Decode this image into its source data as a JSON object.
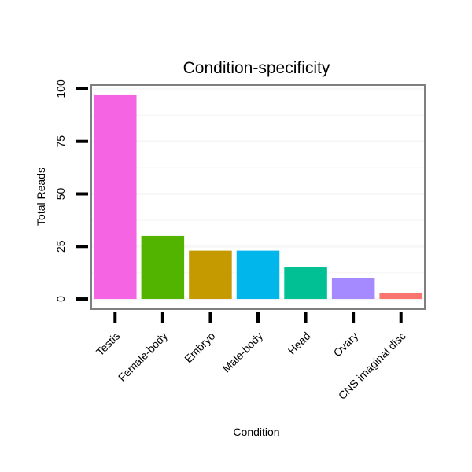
{
  "chart_data": {
    "type": "bar",
    "title": "Condition-specificity",
    "xlabel": "Condition",
    "ylabel": "Total Reads",
    "categories": [
      "Testis",
      "Female-body",
      "Embryo",
      "Male-body",
      "Head",
      "Ovary",
      "CNS imaginal disc"
    ],
    "values": [
      97,
      30,
      23,
      23,
      15,
      10,
      3
    ],
    "colors": [
      "#f564e3",
      "#53b400",
      "#c49a00",
      "#00b6eb",
      "#00c094",
      "#a58aff",
      "#f8766d"
    ],
    "yticks": [
      0,
      25,
      50,
      75,
      100
    ],
    "ylim": [
      -4.85,
      101.85
    ],
    "grid": true,
    "legend": "none"
  }
}
